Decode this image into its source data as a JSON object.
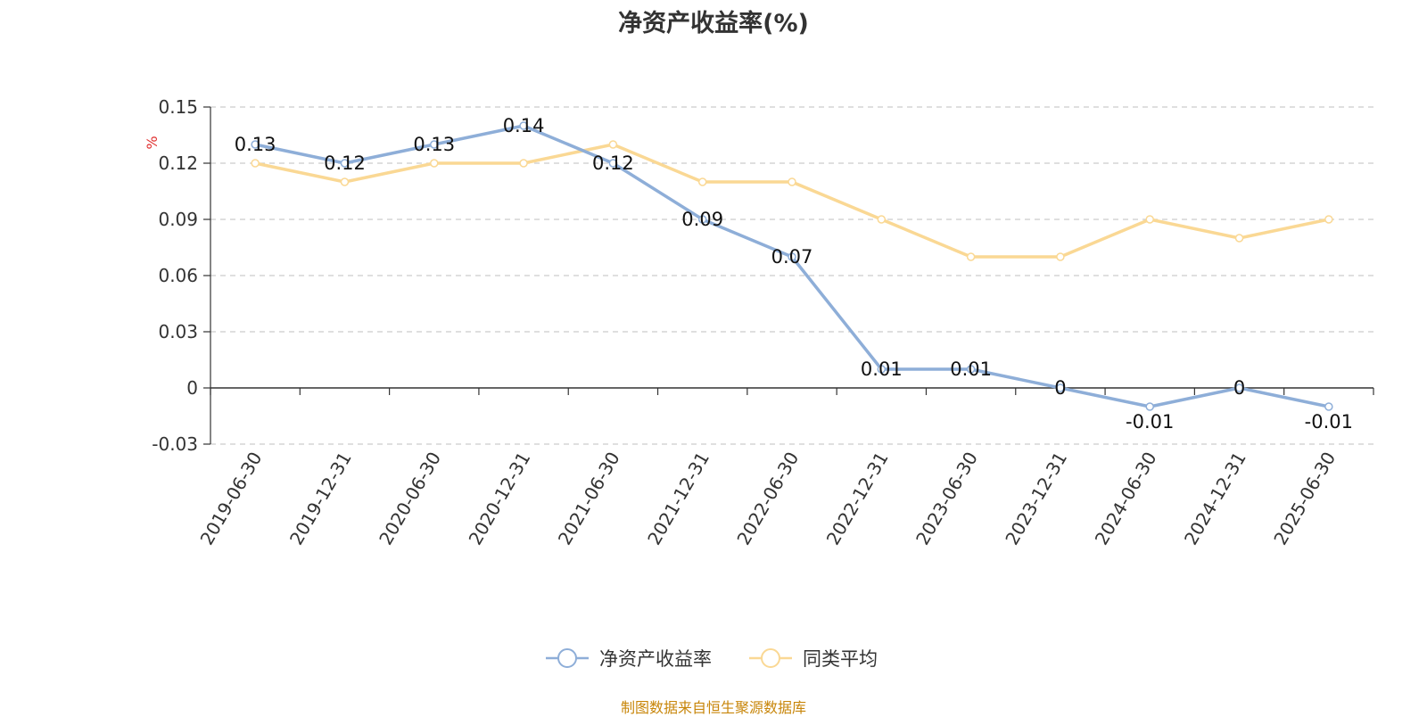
{
  "chart_data": {
    "type": "line",
    "title": "净资产收益率(%)",
    "ylabel": "%",
    "xlabel": "",
    "ylim": [
      -0.03,
      0.15
    ],
    "yticks": [
      -0.03,
      0,
      0.03,
      0.06,
      0.09,
      0.12,
      0.15
    ],
    "grid": true,
    "legend_position": "bottom-center",
    "categories": [
      "2019-06-30",
      "2019-12-31",
      "2020-06-30",
      "2020-12-31",
      "2021-06-30",
      "2021-12-31",
      "2022-06-30",
      "2022-12-31",
      "2023-06-30",
      "2023-12-31",
      "2024-06-30",
      "2024-12-31",
      "2025-06-30"
    ],
    "series": [
      {
        "name": "净资产收益率",
        "color": "#8eaed8",
        "values": [
          0.13,
          0.12,
          0.13,
          0.14,
          0.12,
          0.09,
          0.07,
          0.01,
          0.01,
          0,
          -0.01,
          0,
          -0.01
        ],
        "labels": [
          "0.13",
          "0.12",
          "0.13",
          "0.14",
          "0.12",
          "0.09",
          "0.07",
          "0.01",
          "0.01",
          "0",
          "-0.01",
          "0",
          "-0.01"
        ]
      },
      {
        "name": "同类平均",
        "color": "#fad894",
        "values": [
          0.12,
          0.11,
          0.12,
          0.12,
          0.13,
          0.11,
          0.11,
          0.09,
          0.07,
          0.07,
          0.09,
          0.08,
          0.09
        ]
      }
    ],
    "source_note": "制图数据来自恒生聚源数据库"
  }
}
